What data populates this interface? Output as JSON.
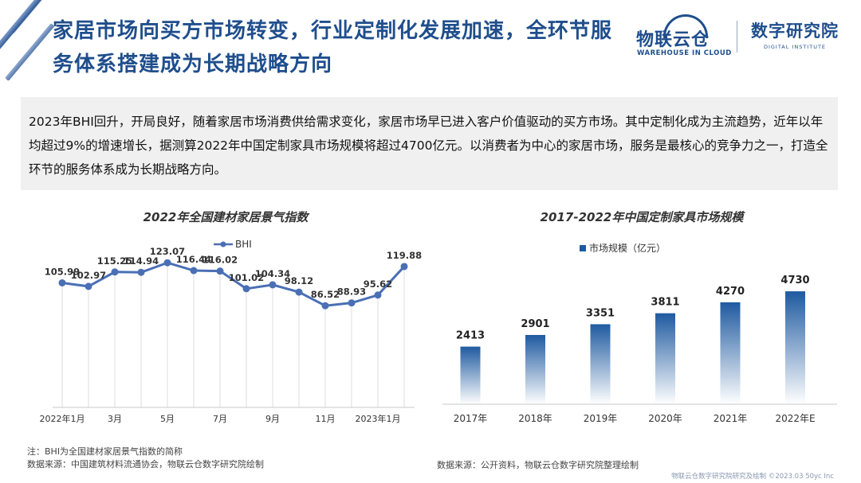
{
  "header": {
    "title_line1": "家居市场向买方市场转变，行业定制化发展加速，全环节服",
    "title_line2": "务体系搭建成为长期战略方向"
  },
  "logos": {
    "wl_cn": "物联云仓",
    "wl_en": "WAREHOUSE IN CLOUD",
    "di_cn": "数字研究院",
    "di_en": "DIGITAL INSTITUTE"
  },
  "summary": {
    "text": "2023年BHI回升，开局良好，随着家居市场消费供给需求变化，家居市场早已进入客户价值驱动的买方市场。其中定制化成为主流趋势，近年以年均超过9%的增速增长，据测算2022年中国定制家具市场规模将超过4700亿元。以消费者为中心的家居市场，服务是最核心的竞争力之一，打造全环节的服务体系成为长期战略方向。"
  },
  "chart_data": [
    {
      "type": "line",
      "title": "2022年全国建材家居景气指数",
      "series": [
        {
          "name": "BHI",
          "values": [
            105.99,
            102.97,
            115.25,
            114.94,
            123.07,
            116.44,
            116.02,
            101.02,
            104.34,
            98.12,
            86.52,
            88.93,
            95.62,
            119.88
          ],
          "labels": [
            "105.99",
            "102.97",
            "115.25",
            "114.94",
            "123.07",
            "116.44",
            "116.02",
            "101.02",
            "104.34",
            "98.12",
            "86.52",
            "88.93",
            "95.62",
            "119.88"
          ]
        }
      ],
      "x_ticks": [
        "2022年1月",
        "3月",
        "5月",
        "7月",
        "9月",
        "11月",
        "2023年1月"
      ],
      "ylim": [
        0,
        130
      ],
      "grid": true,
      "legend": "top-center",
      "color": "#4a6fb5"
    },
    {
      "type": "bar",
      "title": "2017-2022年中国定制家具市场规模",
      "categories": [
        "2017年",
        "2018年",
        "2019年",
        "2020年",
        "2021年",
        "2022年E"
      ],
      "series": [
        {
          "name": "市场规模（亿元）",
          "values": [
            2413,
            2901,
            3351,
            3811,
            4270,
            4730
          ]
        }
      ],
      "ylim": [
        0,
        5000
      ],
      "legend": "top-center",
      "color": "#1f5aa0"
    }
  ],
  "notes": {
    "left_line1": "注：BHI为全国建材家居景气指数的简称",
    "left_line2": "数据来源：中国建筑材料流通协会，物联云仓数字研究院绘制",
    "right": "数据来源：公开资料，物联云仓数字研究院整理绘制"
  },
  "footer": {
    "text": "物联云仓数字研究院研究及绘制  ©2023.03 50yc Inc"
  }
}
